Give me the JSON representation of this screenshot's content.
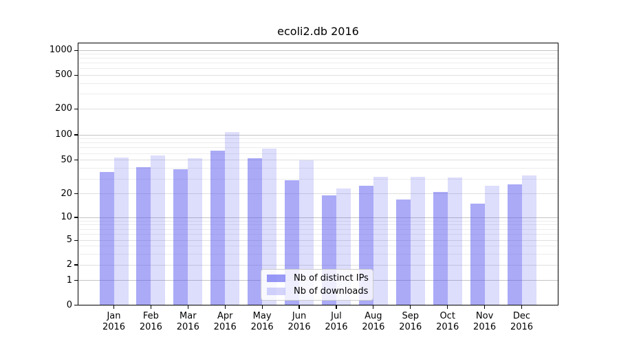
{
  "chart_data": {
    "type": "bar",
    "title": "ecoli2.db 2016",
    "categories": [
      "Jan",
      "Feb",
      "Mar",
      "Apr",
      "May",
      "Jun",
      "Jul",
      "Aug",
      "Sep",
      "Oct",
      "Nov",
      "Dec"
    ],
    "year": "2016",
    "series": [
      {
        "name": "Nb of distinct IPs",
        "values": [
          36,
          41,
          39,
          65,
          53,
          29,
          19,
          25,
          17,
          21,
          15,
          26
        ],
        "color": "#5555F0",
        "alpha": 0.5
      },
      {
        "name": "Nb of downloads",
        "values": [
          54,
          57,
          53,
          108,
          68,
          50,
          23,
          32,
          32,
          31,
          25,
          33
        ],
        "color": "#5555F0",
        "alpha": 0.2
      }
    ],
    "y_ticks": [
      0,
      1,
      2,
      5,
      10,
      20,
      50,
      100,
      200,
      500,
      1000
    ],
    "y_scale": "symlog",
    "ylim": [
      0,
      1400
    ],
    "xlabel": "",
    "ylabel": "",
    "grid": true,
    "legend_position": "lower center",
    "grid_colors": {
      "major": "#c3c3c3",
      "mid": "#dedede",
      "minor": "#ececec"
    }
  }
}
